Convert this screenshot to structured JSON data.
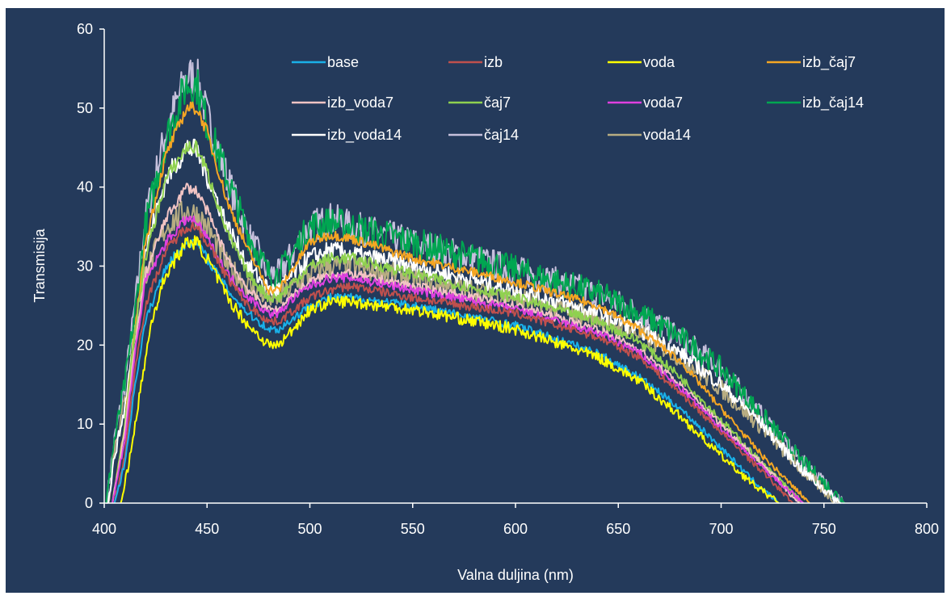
{
  "chart_data": {
    "type": "line",
    "xlabel": "Valna duljina (nm)",
    "ylabel": "Transmisija",
    "xlim": [
      400,
      800
    ],
    "ylim": [
      0,
      60
    ],
    "x_ticks": [
      400,
      450,
      500,
      550,
      600,
      650,
      700,
      750,
      800
    ],
    "y_ticks": [
      0,
      10,
      20,
      30,
      40,
      50,
      60
    ],
    "grid": false,
    "legend_position": "top",
    "series": [
      {
        "name": "base",
        "color": "#1ab0e8",
        "noise": 0.5,
        "points": [
          [
            405,
            0
          ],
          [
            410,
            5
          ],
          [
            415,
            15
          ],
          [
            420,
            23
          ],
          [
            430,
            30
          ],
          [
            440,
            33
          ],
          [
            445,
            33
          ],
          [
            450,
            31
          ],
          [
            460,
            27
          ],
          [
            470,
            24
          ],
          [
            480,
            22
          ],
          [
            485,
            22
          ],
          [
            490,
            23
          ],
          [
            500,
            25
          ],
          [
            510,
            26
          ],
          [
            520,
            26
          ],
          [
            550,
            25
          ],
          [
            600,
            22.5
          ],
          [
            640,
            19
          ],
          [
            660,
            16
          ],
          [
            680,
            12
          ],
          [
            700,
            7
          ],
          [
            715,
            3
          ],
          [
            728,
            0
          ]
        ]
      },
      {
        "name": "izb",
        "color": "#c0504d",
        "noise": 0.5,
        "points": [
          [
            405,
            0
          ],
          [
            410,
            6
          ],
          [
            415,
            17
          ],
          [
            420,
            25
          ],
          [
            430,
            32
          ],
          [
            440,
            35
          ],
          [
            445,
            35
          ],
          [
            450,
            33
          ],
          [
            460,
            28.5
          ],
          [
            470,
            25
          ],
          [
            480,
            23
          ],
          [
            485,
            23
          ],
          [
            490,
            24
          ],
          [
            500,
            26
          ],
          [
            510,
            27
          ],
          [
            520,
            27.5
          ],
          [
            550,
            26
          ],
          [
            600,
            24
          ],
          [
            640,
            21
          ],
          [
            660,
            18.5
          ],
          [
            680,
            14
          ],
          [
            700,
            9
          ],
          [
            720,
            4
          ],
          [
            735,
            0
          ]
        ]
      },
      {
        "name": "voda",
        "color": "#ffff00",
        "noise": 0.7,
        "points": [
          [
            408,
            0
          ],
          [
            412,
            5
          ],
          [
            418,
            15
          ],
          [
            423,
            23
          ],
          [
            430,
            29
          ],
          [
            440,
            33
          ],
          [
            445,
            33
          ],
          [
            450,
            31
          ],
          [
            460,
            26
          ],
          [
            470,
            22.5
          ],
          [
            480,
            20
          ],
          [
            485,
            20
          ],
          [
            490,
            21.5
          ],
          [
            500,
            24.5
          ],
          [
            510,
            25.5
          ],
          [
            520,
            25.5
          ],
          [
            550,
            24.5
          ],
          [
            600,
            22
          ],
          [
            640,
            18.5
          ],
          [
            660,
            15.5
          ],
          [
            680,
            11
          ],
          [
            700,
            6
          ],
          [
            715,
            2.5
          ],
          [
            728,
            0
          ]
        ]
      },
      {
        "name": "izb_čaj7",
        "color": "#f5a623",
        "noise": 0.5,
        "points": [
          [
            404,
            0
          ],
          [
            410,
            10
          ],
          [
            415,
            22
          ],
          [
            420,
            33
          ],
          [
            430,
            44
          ],
          [
            440,
            50
          ],
          [
            445,
            50
          ],
          [
            450,
            47
          ],
          [
            460,
            38
          ],
          [
            470,
            32
          ],
          [
            480,
            27
          ],
          [
            485,
            27
          ],
          [
            490,
            29
          ],
          [
            500,
            33
          ],
          [
            510,
            34
          ],
          [
            520,
            33.5
          ],
          [
            550,
            31
          ],
          [
            600,
            28
          ],
          [
            640,
            25
          ],
          [
            660,
            22
          ],
          [
            680,
            18
          ],
          [
            700,
            12
          ],
          [
            720,
            6
          ],
          [
            743,
            0
          ]
        ]
      },
      {
        "name": "izb_voda7",
        "color": "#f2c4c4",
        "noise": 0.5,
        "points": [
          [
            404,
            0
          ],
          [
            410,
            9
          ],
          [
            415,
            20
          ],
          [
            420,
            29
          ],
          [
            430,
            36
          ],
          [
            440,
            40
          ],
          [
            445,
            39.5
          ],
          [
            450,
            37
          ],
          [
            460,
            31
          ],
          [
            470,
            27
          ],
          [
            480,
            24.5
          ],
          [
            485,
            24.5
          ],
          [
            490,
            26
          ],
          [
            500,
            28
          ],
          [
            510,
            29
          ],
          [
            520,
            29
          ],
          [
            550,
            27.5
          ],
          [
            600,
            25
          ],
          [
            640,
            22
          ],
          [
            660,
            19.5
          ],
          [
            680,
            15
          ],
          [
            700,
            10
          ],
          [
            720,
            5
          ],
          [
            738,
            0
          ]
        ]
      },
      {
        "name": "čaj7",
        "color": "#8fd14f",
        "noise": 0.6,
        "points": [
          [
            404,
            0
          ],
          [
            410,
            10
          ],
          [
            415,
            22
          ],
          [
            420,
            31
          ],
          [
            430,
            41
          ],
          [
            440,
            45
          ],
          [
            445,
            45
          ],
          [
            450,
            42
          ],
          [
            460,
            34
          ],
          [
            470,
            29
          ],
          [
            480,
            26
          ],
          [
            485,
            26
          ],
          [
            490,
            27.5
          ],
          [
            500,
            30
          ],
          [
            510,
            31
          ],
          [
            520,
            31
          ],
          [
            550,
            29
          ],
          [
            600,
            26
          ],
          [
            640,
            23
          ],
          [
            660,
            20.5
          ],
          [
            680,
            16
          ],
          [
            700,
            10.5
          ],
          [
            720,
            5
          ],
          [
            740,
            0
          ]
        ]
      },
      {
        "name": "voda7",
        "color": "#e040e0",
        "noise": 0.5,
        "points": [
          [
            404,
            0
          ],
          [
            410,
            8
          ],
          [
            415,
            19
          ],
          [
            420,
            28
          ],
          [
            430,
            33
          ],
          [
            440,
            36
          ],
          [
            445,
            35.5
          ],
          [
            450,
            33.5
          ],
          [
            460,
            29
          ],
          [
            470,
            26
          ],
          [
            480,
            24
          ],
          [
            485,
            24
          ],
          [
            490,
            25.5
          ],
          [
            500,
            27.5
          ],
          [
            510,
            28.5
          ],
          [
            520,
            28.5
          ],
          [
            550,
            27
          ],
          [
            600,
            24.5
          ],
          [
            640,
            21.5
          ],
          [
            660,
            19
          ],
          [
            680,
            14.5
          ],
          [
            700,
            9.5
          ],
          [
            720,
            4.5
          ],
          [
            740,
            0
          ]
        ]
      },
      {
        "name": "izb_čaj14",
        "color": "#00a651",
        "noise": 1.6,
        "points": [
          [
            401,
            0
          ],
          [
            405,
            8
          ],
          [
            410,
            15
          ],
          [
            415,
            24
          ],
          [
            420,
            35
          ],
          [
            430,
            46
          ],
          [
            440,
            53
          ],
          [
            445,
            53
          ],
          [
            450,
            48
          ],
          [
            460,
            41
          ],
          [
            470,
            34
          ],
          [
            480,
            29
          ],
          [
            485,
            29
          ],
          [
            490,
            31
          ],
          [
            500,
            35
          ],
          [
            510,
            35.5
          ],
          [
            520,
            35
          ],
          [
            550,
            33
          ],
          [
            600,
            29.5
          ],
          [
            640,
            26.5
          ],
          [
            660,
            24
          ],
          [
            680,
            21
          ],
          [
            700,
            17
          ],
          [
            720,
            11
          ],
          [
            740,
            5
          ],
          [
            760,
            0
          ]
        ]
      },
      {
        "name": "izb_voda14",
        "color": "#ffffff",
        "noise": 1.0,
        "points": [
          [
            402,
            0
          ],
          [
            405,
            6
          ],
          [
            410,
            12
          ],
          [
            415,
            22
          ],
          [
            420,
            32
          ],
          [
            430,
            41
          ],
          [
            440,
            45
          ],
          [
            445,
            44.5
          ],
          [
            450,
            41.5
          ],
          [
            460,
            35
          ],
          [
            470,
            30
          ],
          [
            480,
            27
          ],
          [
            485,
            27
          ],
          [
            490,
            28.5
          ],
          [
            500,
            31
          ],
          [
            510,
            32
          ],
          [
            520,
            31.5
          ],
          [
            550,
            30
          ],
          [
            600,
            27
          ],
          [
            640,
            24
          ],
          [
            660,
            22
          ],
          [
            680,
            19
          ],
          [
            700,
            15
          ],
          [
            720,
            10
          ],
          [
            740,
            4
          ],
          [
            758,
            0
          ]
        ]
      },
      {
        "name": "čaj14",
        "color": "#c6c0dc",
        "noise": 1.6,
        "points": [
          [
            401,
            0
          ],
          [
            405,
            8
          ],
          [
            410,
            15
          ],
          [
            415,
            25
          ],
          [
            420,
            36
          ],
          [
            430,
            47
          ],
          [
            440,
            54
          ],
          [
            445,
            54
          ],
          [
            450,
            49
          ],
          [
            460,
            41
          ],
          [
            470,
            34
          ],
          [
            480,
            29
          ],
          [
            485,
            29
          ],
          [
            490,
            31
          ],
          [
            500,
            35
          ],
          [
            510,
            36
          ],
          [
            520,
            35
          ],
          [
            550,
            33
          ],
          [
            600,
            29.5
          ],
          [
            640,
            26.5
          ],
          [
            660,
            24
          ],
          [
            680,
            21
          ],
          [
            700,
            17
          ],
          [
            720,
            11
          ],
          [
            740,
            5
          ],
          [
            760,
            0
          ]
        ]
      },
      {
        "name": "voda14",
        "color": "#b8ad82",
        "noise": 1.3,
        "points": [
          [
            402,
            0
          ],
          [
            405,
            7
          ],
          [
            410,
            13
          ],
          [
            415,
            21
          ],
          [
            420,
            29
          ],
          [
            430,
            35
          ],
          [
            440,
            37
          ],
          [
            445,
            36.5
          ],
          [
            450,
            35
          ],
          [
            460,
            30
          ],
          [
            470,
            27.5
          ],
          [
            480,
            26
          ],
          [
            485,
            26
          ],
          [
            490,
            27
          ],
          [
            500,
            29
          ],
          [
            510,
            30
          ],
          [
            520,
            30
          ],
          [
            550,
            28.5
          ],
          [
            600,
            26
          ],
          [
            640,
            23.5
          ],
          [
            660,
            21.5
          ],
          [
            680,
            18.5
          ],
          [
            700,
            14.5
          ],
          [
            720,
            9.5
          ],
          [
            740,
            4
          ],
          [
            757,
            0
          ]
        ]
      }
    ]
  }
}
